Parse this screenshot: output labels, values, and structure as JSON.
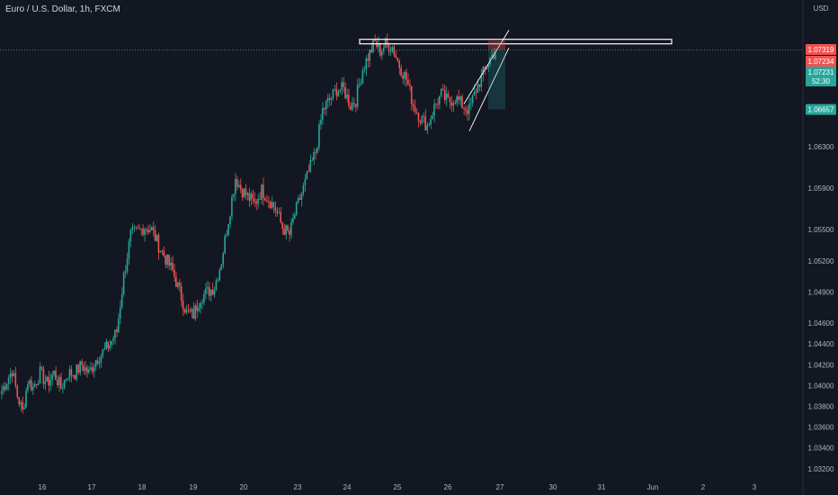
{
  "header": {
    "title": "Euro / U.S. Dollar, 1h, FXCM",
    "currency": "USD"
  },
  "colors": {
    "background": "#131722",
    "up": "#26a69a",
    "down": "#ef5350",
    "axis_text": "#b2b5be",
    "drawing": "#ffffff",
    "stop_zone": "#ef5350",
    "target_zone": "#26a69a"
  },
  "price_tags": {
    "stop": "1.07319",
    "upper": "1.07234",
    "current": "1.07231",
    "countdown": "52:30",
    "target": "1.06657"
  },
  "chart_data": {
    "type": "candlestick",
    "symbol": "Euro / U.S. Dollar",
    "timeframe": "1h",
    "source": "FXCM",
    "currency": "USD",
    "ylim": [
      1.0312,
      1.0752
    ],
    "y_ticks": [
      "1.06300",
      "1.05900",
      "1.05500",
      "1.05200",
      "1.04900",
      "1.04600",
      "1.04400",
      "1.04200",
      "1.04000",
      "1.03800",
      "1.03600",
      "1.03400",
      "1.03200"
    ],
    "x_ticks": [
      "16",
      "17",
      "18",
      "19",
      "20",
      "23",
      "24",
      "25",
      "26",
      "27",
      "30",
      "31",
      "Jun",
      "2",
      "3"
    ],
    "anchors": [
      [
        0,
        1.0395
      ],
      [
        3,
        1.0405
      ],
      [
        6,
        1.0415
      ],
      [
        9,
        1.039
      ],
      [
        12,
        1.0375
      ],
      [
        15,
        1.0405
      ],
      [
        18,
        1.0398
      ],
      [
        22,
        1.0412
      ],
      [
        26,
        1.0402
      ],
      [
        30,
        1.0412
      ],
      [
        34,
        1.0398
      ],
      [
        38,
        1.0412
      ],
      [
        42,
        1.0412
      ],
      [
        46,
        1.042
      ],
      [
        50,
        1.0412
      ],
      [
        54,
        1.0425
      ],
      [
        58,
        1.0432
      ],
      [
        62,
        1.044
      ],
      [
        66,
        1.0452
      ],
      [
        70,
        1.0505
      ],
      [
        74,
        1.0545
      ],
      [
        78,
        1.0548
      ],
      [
        82,
        1.0553
      ],
      [
        86,
        1.055
      ],
      [
        90,
        1.0535
      ],
      [
        94,
        1.0522
      ],
      [
        98,
        1.051
      ],
      [
        102,
        1.049
      ],
      [
        106,
        1.047
      ],
      [
        110,
        1.0468
      ],
      [
        114,
        1.0485
      ],
      [
        118,
        1.049
      ],
      [
        122,
        1.0495
      ],
      [
        126,
        1.052
      ],
      [
        130,
        1.056
      ],
      [
        134,
        1.06
      ],
      [
        137,
        1.059
      ],
      [
        141,
        1.0582
      ],
      [
        145,
        1.0575
      ],
      [
        149,
        1.0588
      ],
      [
        153,
        1.058
      ],
      [
        157,
        1.057
      ],
      [
        161,
        1.0552
      ],
      [
        165,
        1.0545
      ],
      [
        168,
        1.0565
      ],
      [
        172,
        1.0585
      ],
      [
        176,
        1.0605
      ],
      [
        180,
        1.0625
      ],
      [
        184,
        1.0665
      ],
      [
        188,
        1.0675
      ],
      [
        192,
        1.0685
      ],
      [
        196,
        1.0685
      ],
      [
        200,
        1.067
      ],
      [
        203,
        1.0675
      ],
      [
        207,
        1.0705
      ],
      [
        211,
        1.072
      ],
      [
        214,
        1.073
      ],
      [
        217,
        1.0722
      ],
      [
        220,
        1.0728
      ],
      [
        224,
        1.0726
      ],
      [
        228,
        1.0708
      ],
      [
        232,
        1.0695
      ],
      [
        236,
        1.067
      ],
      [
        240,
        1.0658
      ],
      [
        244,
        1.065
      ],
      [
        248,
        1.0668
      ],
      [
        252,
        1.068
      ],
      [
        256,
        1.0673
      ],
      [
        260,
        1.0677
      ],
      [
        264,
        1.067
      ],
      [
        268,
        1.0665
      ],
      [
        272,
        1.0685
      ],
      [
        276,
        1.07
      ],
      [
        280,
        1.0715
      ],
      [
        283,
        1.0722
      ]
    ],
    "levels": {
      "resistance": 1.07319,
      "entry": 1.07231,
      "stop": 1.07319,
      "target": 1.06657
    },
    "annotations": [
      "resistance rectangle at the top",
      "rising wedge",
      "short position (stop 1.07319, target 1.06657)"
    ]
  }
}
